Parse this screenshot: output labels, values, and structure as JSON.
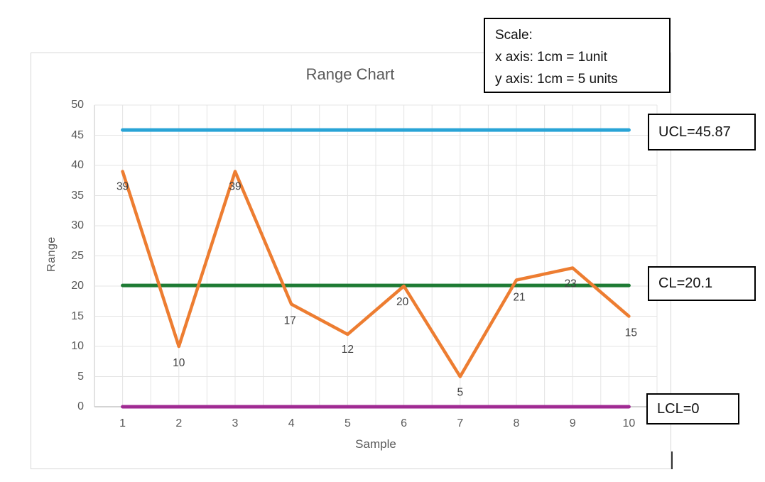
{
  "title": "Range Chart",
  "scale_box": {
    "lines": [
      "Scale:",
      "x axis: 1cm = 1unit",
      "y axis: 1cm = 5 units"
    ]
  },
  "chart_data": {
    "type": "line",
    "title": "Range Chart",
    "xlabel": "Sample",
    "ylabel": "Range",
    "categories": [
      "1",
      "2",
      "3",
      "4",
      "5",
      "6",
      "7",
      "8",
      "9",
      "10"
    ],
    "series": [
      {
        "name": "Range",
        "values": [
          39,
          10,
          39,
          17,
          12,
          20,
          5,
          21,
          23,
          15
        ],
        "color": "#ED7D31"
      }
    ],
    "data_labels": [
      "39",
      "10",
      "39",
      "17",
      "12",
      "20",
      "5",
      "21",
      "23",
      "15"
    ],
    "control_lines": [
      {
        "name": "UCL",
        "value": 45.87,
        "color": "#29A4D6",
        "label": "UCL=45.87"
      },
      {
        "name": "CL",
        "value": 20.1,
        "color": "#1E7B34",
        "label": "CL=20.1"
      },
      {
        "name": "LCL",
        "value": 0,
        "color": "#A02B93",
        "label": "LCL=0"
      }
    ],
    "ylim": [
      0,
      50
    ],
    "yticks": [
      0,
      5,
      10,
      15,
      20,
      25,
      30,
      35,
      40,
      45,
      50
    ],
    "grid": true,
    "legend": "none"
  },
  "colors": {
    "series": "#ED7D31",
    "ucl": "#29A4D6",
    "cl": "#1E7B34",
    "lcl": "#A02B93",
    "gridline": "#E4E4E4",
    "axis": "#C6C6C6",
    "muted_text": "#595959",
    "data_label_text": "#404040"
  }
}
